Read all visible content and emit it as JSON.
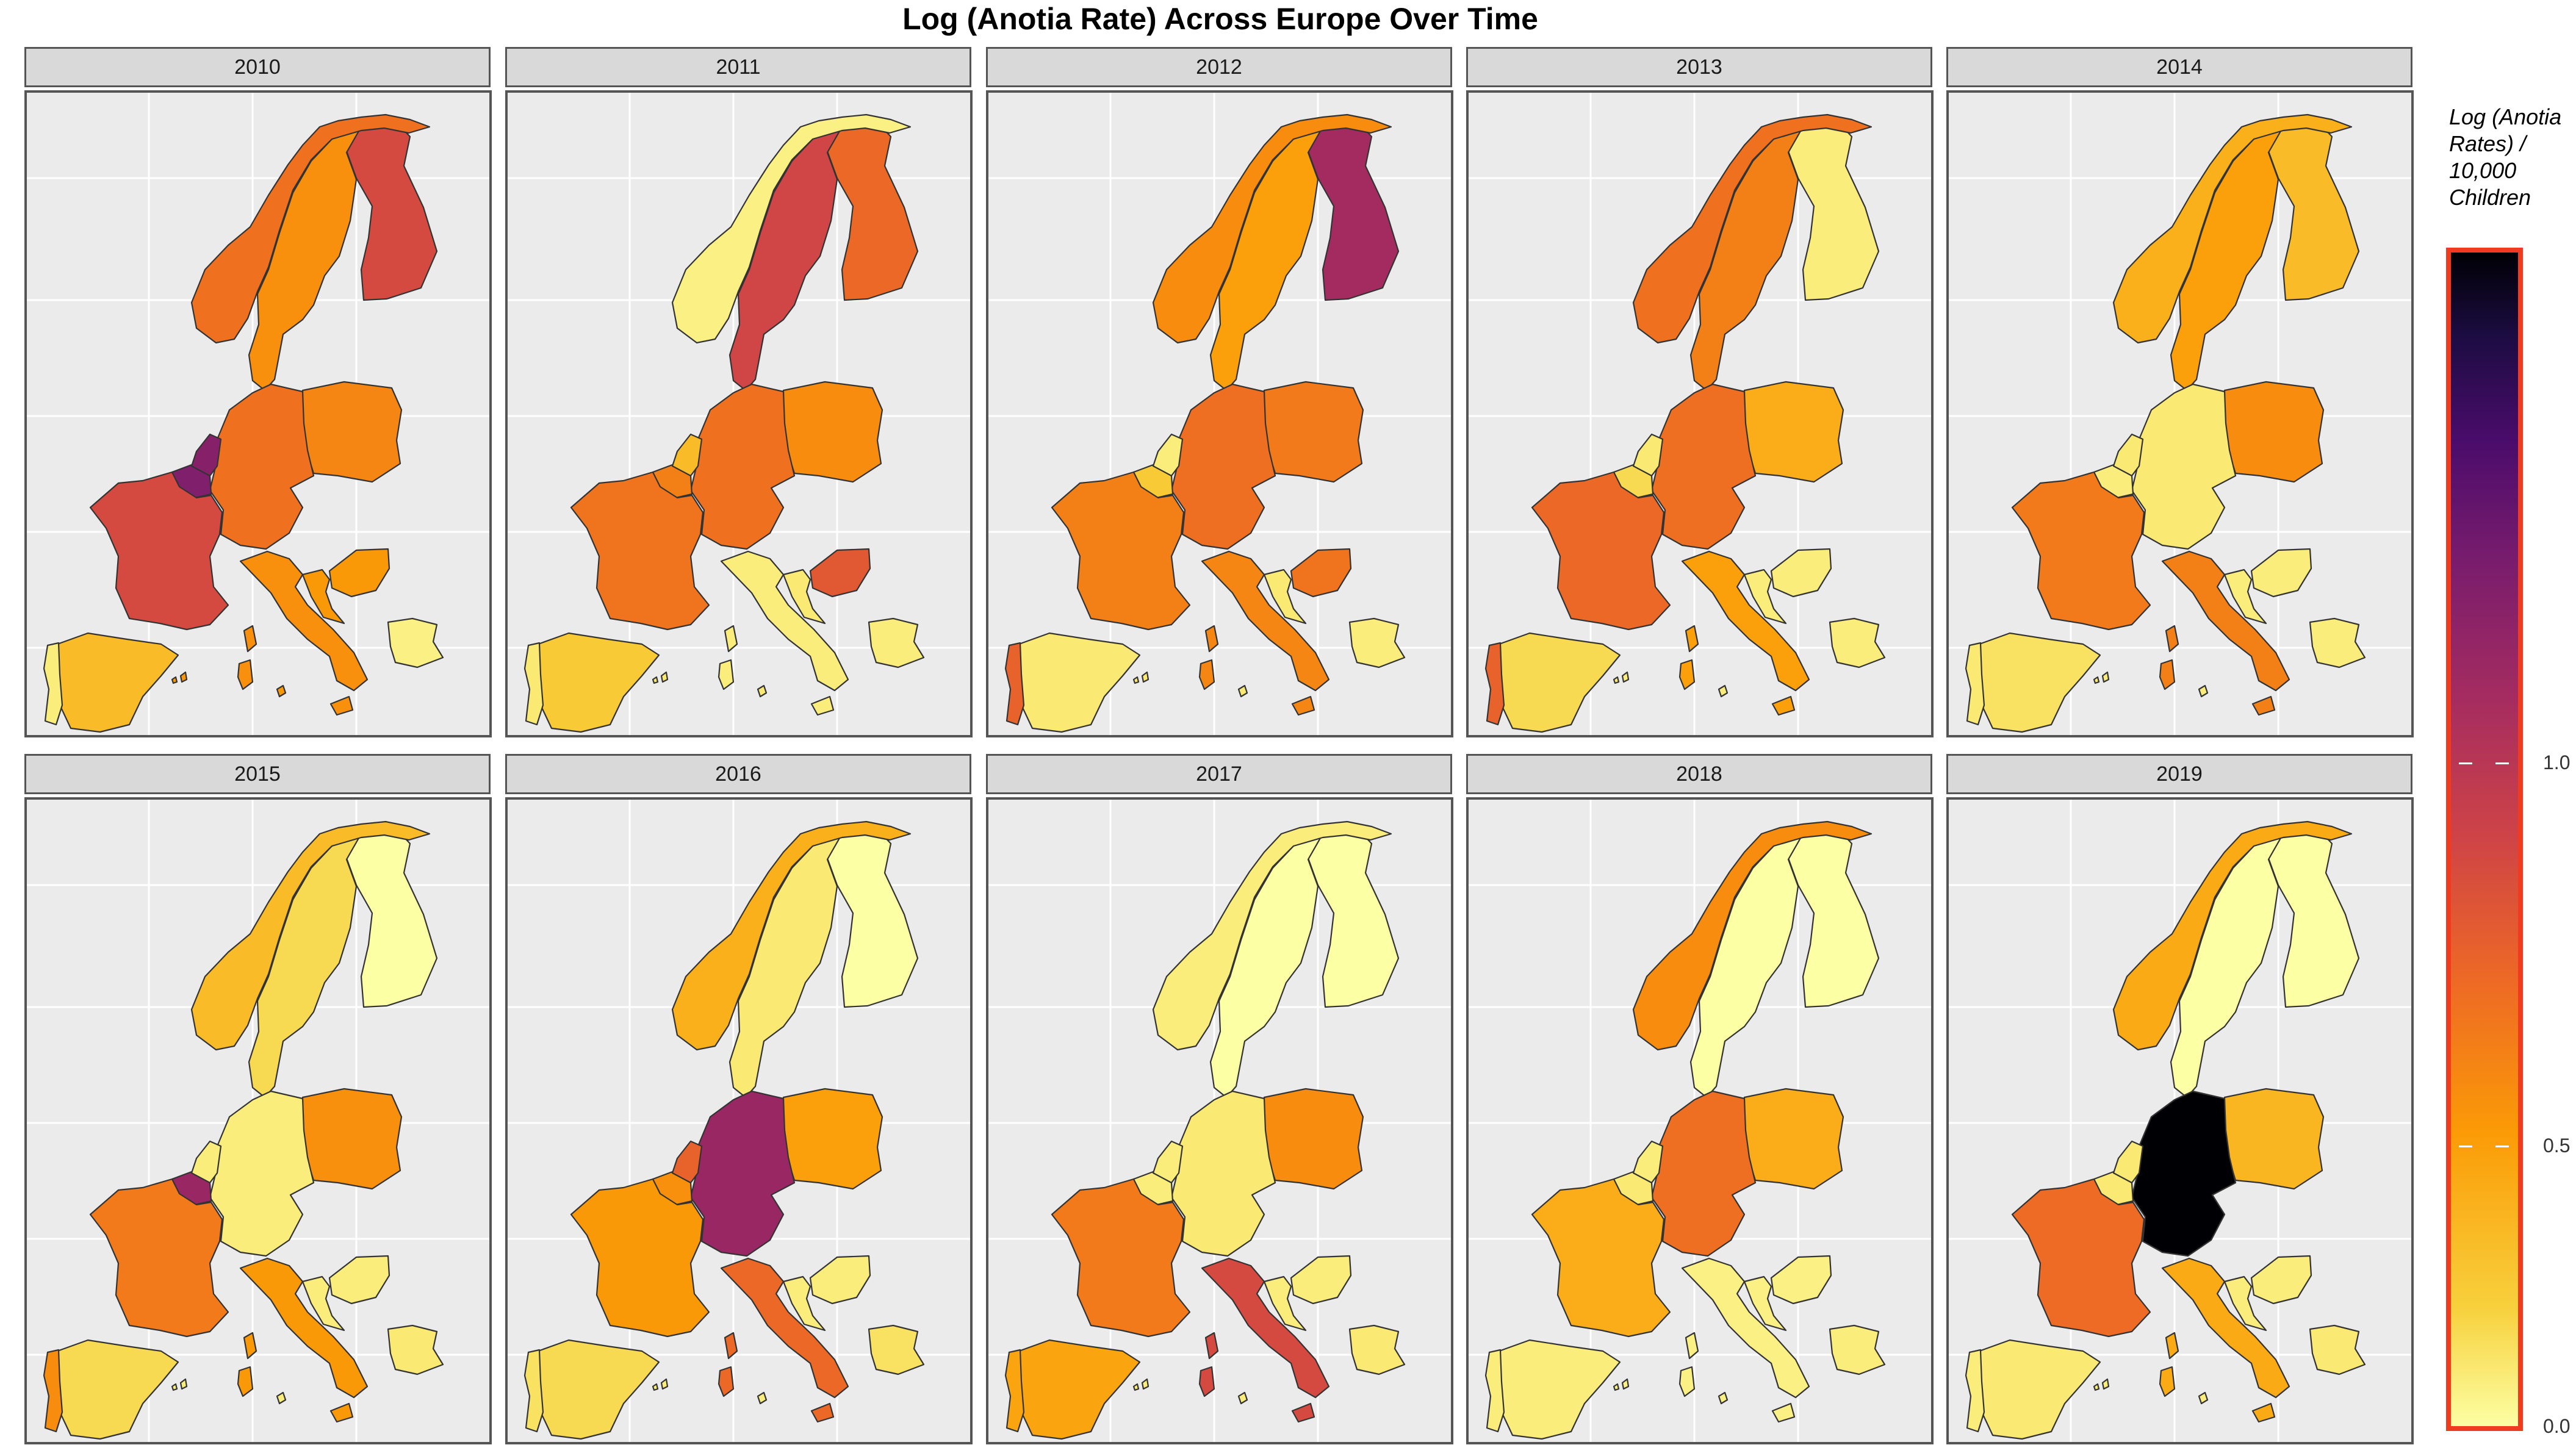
{
  "title": "Log (Anotia Rate) Across Europe Over Time",
  "legend": {
    "title": "Log (Anotia Rates) / 10,000 Children",
    "ticks": [
      "1.0",
      "0.5",
      "0.0"
    ],
    "scale": {
      "min": 0.0,
      "max": 1.25,
      "tick_values": [
        1.0,
        0.5,
        0.0
      ]
    },
    "palette": "inferno-reversed"
  },
  "regions": [
    "Finland",
    "Sweden",
    "Norway",
    "Poland",
    "Germany",
    "Belgium",
    "Netherlands",
    "France",
    "Hungary",
    "Croatia",
    "Italy",
    "Malta",
    "Spain",
    "Portugal",
    "Bulgaria"
  ],
  "panels": [
    {
      "year": "2010",
      "values": {
        "Finland": 0.6,
        "Sweden": 0.35,
        "Norway": 0.45,
        "Poland": 0.38,
        "Germany": 0.45,
        "Belgium": 0.9,
        "Netherlands": 0.88,
        "France": 0.6,
        "Hungary": 0.32,
        "Croatia": 0.32,
        "Italy": 0.35,
        "Malta": 0.35,
        "Spain": 0.2,
        "Portugal": 0.05,
        "Bulgaria": 0.04
      }
    },
    {
      "year": "2011",
      "values": {
        "Finland": 0.48,
        "Sweden": 0.62,
        "Norway": 0.04,
        "Poland": 0.36,
        "Germany": 0.45,
        "Belgium": 0.4,
        "Netherlands": 0.2,
        "France": 0.44,
        "Hungary": 0.54,
        "Croatia": 0.06,
        "Italy": 0.05,
        "Malta": 0.05,
        "Spain": 0.15,
        "Portugal": 0.06,
        "Bulgaria": 0.05
      }
    },
    {
      "year": "2012",
      "values": {
        "Finland": 0.78,
        "Sweden": 0.3,
        "Norway": 0.36,
        "Poland": 0.42,
        "Germany": 0.46,
        "Belgium": 0.15,
        "Netherlands": 0.05,
        "France": 0.4,
        "Hungary": 0.44,
        "Croatia": 0.06,
        "Italy": 0.38,
        "Malta": 0.38,
        "Spain": 0.06,
        "Portugal": 0.5,
        "Bulgaria": 0.05
      }
    },
    {
      "year": "2013",
      "values": {
        "Finland": 0.05,
        "Sweden": 0.4,
        "Norway": 0.45,
        "Poland": 0.25,
        "Germany": 0.46,
        "Belgium": 0.1,
        "Netherlands": 0.06,
        "France": 0.48,
        "Hungary": 0.05,
        "Croatia": 0.05,
        "Italy": 0.3,
        "Malta": 0.3,
        "Spain": 0.1,
        "Portugal": 0.5,
        "Bulgaria": 0.05
      }
    },
    {
      "year": "2014",
      "values": {
        "Finland": 0.2,
        "Sweden": 0.3,
        "Norway": 0.24,
        "Poland": 0.36,
        "Germany": 0.06,
        "Belgium": 0.05,
        "Netherlands": 0.06,
        "France": 0.42,
        "Hungary": 0.05,
        "Croatia": 0.05,
        "Italy": 0.4,
        "Malta": 0.4,
        "Spain": 0.08,
        "Portugal": 0.06,
        "Bulgaria": 0.05
      }
    },
    {
      "year": "2015",
      "values": {
        "Finland": 0.0,
        "Sweden": 0.1,
        "Norway": 0.2,
        "Poland": 0.35,
        "Germany": 0.05,
        "Belgium": 0.82,
        "Netherlands": 0.05,
        "France": 0.42,
        "Hungary": 0.05,
        "Croatia": 0.05,
        "Italy": 0.32,
        "Malta": 0.32,
        "Spain": 0.1,
        "Portugal": 0.36,
        "Bulgaria": 0.06
      }
    },
    {
      "year": "2016",
      "values": {
        "Finland": 0.0,
        "Sweden": 0.06,
        "Norway": 0.24,
        "Poland": 0.3,
        "Germany": 0.82,
        "Belgium": 0.35,
        "Netherlands": 0.5,
        "France": 0.32,
        "Hungary": 0.05,
        "Croatia": 0.05,
        "Italy": 0.48,
        "Malta": 0.48,
        "Spain": 0.1,
        "Portugal": 0.08,
        "Bulgaria": 0.08
      }
    },
    {
      "year": "2017",
      "values": {
        "Finland": 0.0,
        "Sweden": 0.0,
        "Norway": 0.05,
        "Poland": 0.36,
        "Germany": 0.06,
        "Belgium": 0.05,
        "Netherlands": 0.05,
        "France": 0.42,
        "Hungary": 0.05,
        "Croatia": 0.05,
        "Italy": 0.6,
        "Malta": 0.6,
        "Spain": 0.28,
        "Portugal": 0.28,
        "Bulgaria": 0.06
      }
    },
    {
      "year": "2018",
      "values": {
        "Finland": 0.0,
        "Sweden": 0.0,
        "Norway": 0.36,
        "Poland": 0.25,
        "Germany": 0.46,
        "Belgium": 0.06,
        "Netherlands": 0.05,
        "France": 0.25,
        "Hungary": 0.04,
        "Croatia": 0.04,
        "Italy": 0.04,
        "Malta": 0.04,
        "Spain": 0.05,
        "Portugal": 0.05,
        "Bulgaria": 0.05
      }
    },
    {
      "year": "2019",
      "values": {
        "Finland": 0.0,
        "Sweden": 0.0,
        "Norway": 0.26,
        "Poland": 0.22,
        "Germany": 1.25,
        "Belgium": 0.06,
        "Netherlands": 0.06,
        "France": 0.47,
        "Hungary": 0.05,
        "Croatia": 0.05,
        "Italy": 0.26,
        "Malta": 0.26,
        "Spain": 0.06,
        "Portugal": 0.05,
        "Bulgaria": 0.06
      }
    }
  ]
}
